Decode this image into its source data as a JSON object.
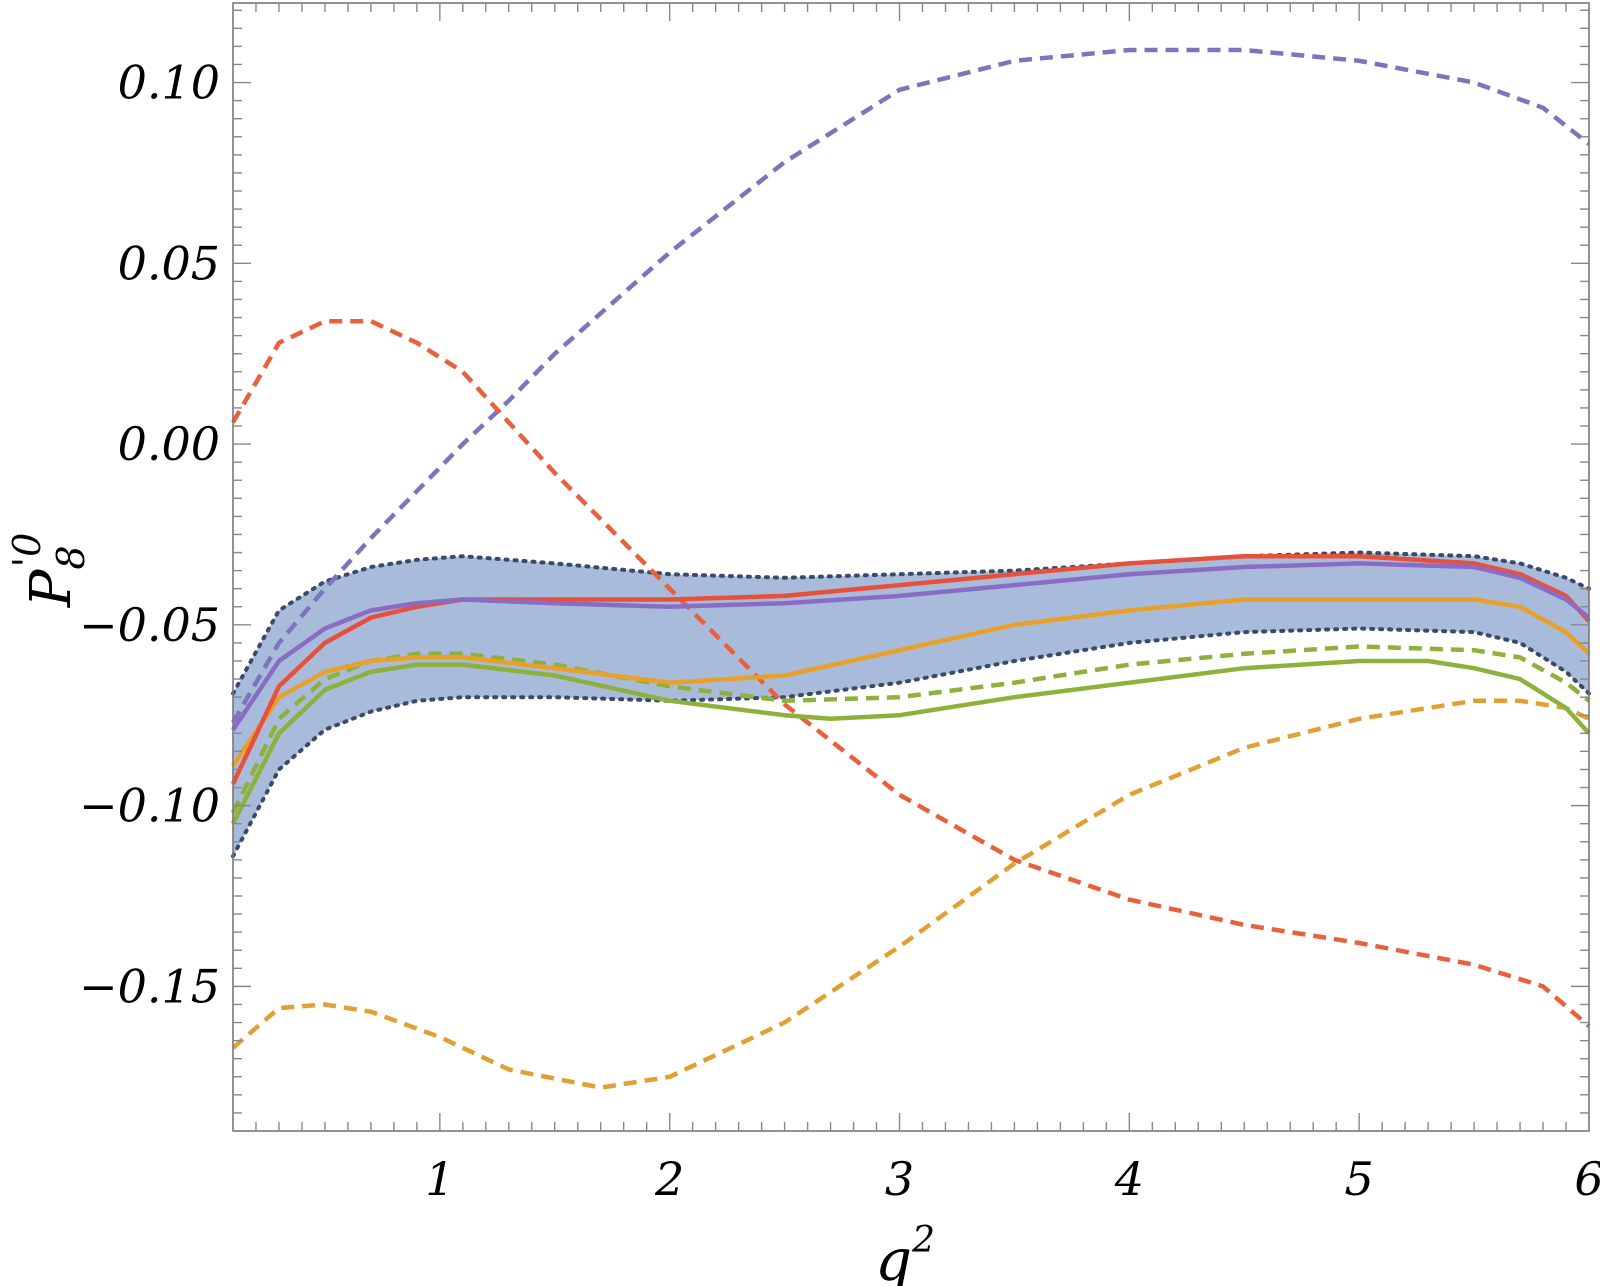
{
  "chart_data": {
    "type": "line",
    "title": "",
    "xlabel": "q",
    "xlabel_sup": "2",
    "ylabel_main": "P",
    "ylabel_sub": "8",
    "ylabel_sup": "'0",
    "xlim": [
      0.1,
      6.0
    ],
    "ylim": [
      -0.19,
      0.122
    ],
    "x_ticks": [
      {
        "value": 1,
        "label": "1"
      },
      {
        "value": 2,
        "label": "2"
      },
      {
        "value": 3,
        "label": "3"
      },
      {
        "value": 4,
        "label": "4"
      },
      {
        "value": 5,
        "label": "5"
      },
      {
        "value": 6,
        "label": "6"
      }
    ],
    "y_ticks": [
      {
        "value": 0.1,
        "label": "0.10"
      },
      {
        "value": 0.05,
        "label": "0.05"
      },
      {
        "value": 0.0,
        "label": "0.00"
      },
      {
        "value": -0.05,
        "label": "−0.05"
      },
      {
        "value": -0.1,
        "label": "−0.10"
      },
      {
        "value": -0.15,
        "label": "−0.15"
      }
    ],
    "band": {
      "color": "#a9bbdb",
      "edge_color": "#3a4a6b",
      "x": [
        0.1,
        0.3,
        0.5,
        0.7,
        0.9,
        1.1,
        1.5,
        2.0,
        2.5,
        3.0,
        3.5,
        4.0,
        4.5,
        5.0,
        5.5,
        5.7,
        5.9,
        6.0
      ],
      "upper": [
        -0.069,
        -0.046,
        -0.038,
        -0.034,
        -0.032,
        -0.031,
        -0.033,
        -0.036,
        -0.037,
        -0.036,
        -0.035,
        -0.033,
        -0.031,
        -0.03,
        -0.031,
        -0.033,
        -0.037,
        -0.04
      ],
      "lower": [
        -0.114,
        -0.09,
        -0.079,
        -0.074,
        -0.071,
        -0.07,
        -0.07,
        -0.071,
        -0.07,
        -0.066,
        -0.06,
        -0.055,
        -0.052,
        -0.051,
        -0.052,
        -0.055,
        -0.063,
        -0.069
      ]
    },
    "series": [
      {
        "color": "#7b75bd",
        "style": "dashed",
        "x": [
          0.1,
          0.3,
          0.5,
          0.7,
          0.9,
          1.1,
          1.3,
          1.5,
          2.0,
          2.5,
          3.0,
          3.5,
          4.0,
          4.2,
          4.5,
          5.0,
          5.5,
          5.8,
          6.0
        ],
        "y": [
          -0.077,
          -0.055,
          -0.04,
          -0.026,
          -0.013,
          0.0,
          0.012,
          0.025,
          0.053,
          0.078,
          0.098,
          0.106,
          0.109,
          0.109,
          0.109,
          0.106,
          0.1,
          0.093,
          0.083
        ]
      },
      {
        "color": "#e8603c",
        "style": "dashed",
        "x": [
          0.1,
          0.3,
          0.5,
          0.7,
          0.9,
          1.1,
          1.5,
          2.0,
          2.5,
          3.0,
          3.5,
          4.0,
          4.5,
          5.0,
          5.5,
          5.8,
          6.0
        ],
        "y": [
          0.006,
          0.028,
          0.034,
          0.034,
          0.028,
          0.02,
          -0.008,
          -0.04,
          -0.072,
          -0.097,
          -0.115,
          -0.126,
          -0.133,
          -0.138,
          -0.144,
          -0.15,
          -0.161
        ]
      },
      {
        "color": "#e2a034",
        "style": "dashed",
        "x": [
          0.1,
          0.3,
          0.5,
          0.7,
          1.0,
          1.3,
          1.7,
          2.0,
          2.5,
          3.0,
          3.5,
          4.0,
          4.5,
          5.0,
          5.5,
          5.7,
          5.9,
          6.0
        ],
        "y": [
          -0.167,
          -0.156,
          -0.155,
          -0.157,
          -0.164,
          -0.173,
          -0.178,
          -0.175,
          -0.16,
          -0.139,
          -0.116,
          -0.097,
          -0.084,
          -0.076,
          -0.071,
          -0.071,
          -0.073,
          -0.076
        ]
      },
      {
        "color": "#8db13a",
        "style": "dashed",
        "x": [
          0.1,
          0.3,
          0.5,
          0.7,
          0.9,
          1.1,
          1.5,
          2.0,
          2.5,
          3.0,
          3.5,
          4.0,
          4.5,
          5.0,
          5.5,
          5.7,
          5.9,
          6.0
        ],
        "y": [
          -0.102,
          -0.076,
          -0.065,
          -0.06,
          -0.058,
          -0.058,
          -0.061,
          -0.067,
          -0.071,
          -0.07,
          -0.066,
          -0.061,
          -0.058,
          -0.056,
          -0.057,
          -0.059,
          -0.066,
          -0.071
        ]
      },
      {
        "color": "#8db13a",
        "style": "solid",
        "x": [
          0.1,
          0.3,
          0.5,
          0.7,
          0.9,
          1.1,
          1.5,
          2.0,
          2.5,
          2.7,
          3.0,
          3.5,
          4.0,
          4.5,
          5.0,
          5.3,
          5.5,
          5.7,
          5.9,
          6.0
        ],
        "y": [
          -0.105,
          -0.08,
          -0.068,
          -0.063,
          -0.061,
          -0.061,
          -0.064,
          -0.071,
          -0.075,
          -0.076,
          -0.075,
          -0.07,
          -0.066,
          -0.062,
          -0.06,
          -0.06,
          -0.062,
          -0.065,
          -0.073,
          -0.08
        ]
      },
      {
        "color": "#e8a128",
        "style": "solid",
        "x": [
          0.1,
          0.3,
          0.5,
          0.7,
          0.9,
          1.1,
          1.5,
          2.0,
          2.5,
          3.0,
          3.5,
          4.0,
          4.5,
          5.0,
          5.5,
          5.7,
          5.9,
          6.0
        ],
        "y": [
          -0.089,
          -0.07,
          -0.063,
          -0.06,
          -0.059,
          -0.059,
          -0.062,
          -0.066,
          -0.064,
          -0.057,
          -0.05,
          -0.046,
          -0.043,
          -0.043,
          -0.043,
          -0.045,
          -0.052,
          -0.058
        ]
      },
      {
        "color": "#e8503a",
        "style": "solid",
        "x": [
          0.1,
          0.3,
          0.5,
          0.7,
          0.9,
          1.1,
          1.5,
          2.0,
          2.5,
          3.0,
          3.5,
          4.0,
          4.5,
          5.0,
          5.5,
          5.7,
          5.9,
          6.0
        ],
        "y": [
          -0.094,
          -0.067,
          -0.055,
          -0.048,
          -0.045,
          -0.043,
          -0.043,
          -0.043,
          -0.042,
          -0.039,
          -0.036,
          -0.033,
          -0.031,
          -0.031,
          -0.033,
          -0.036,
          -0.042,
          -0.049
        ]
      },
      {
        "color": "#8a6cc4",
        "style": "solid",
        "x": [
          0.1,
          0.3,
          0.5,
          0.7,
          0.9,
          1.1,
          1.5,
          2.0,
          2.5,
          3.0,
          3.5,
          4.0,
          4.5,
          5.0,
          5.5,
          5.7,
          5.9,
          6.0
        ],
        "y": [
          -0.079,
          -0.06,
          -0.051,
          -0.046,
          -0.044,
          -0.043,
          -0.044,
          -0.045,
          -0.044,
          -0.042,
          -0.039,
          -0.036,
          -0.034,
          -0.033,
          -0.034,
          -0.037,
          -0.043,
          -0.048
        ]
      }
    ]
  }
}
